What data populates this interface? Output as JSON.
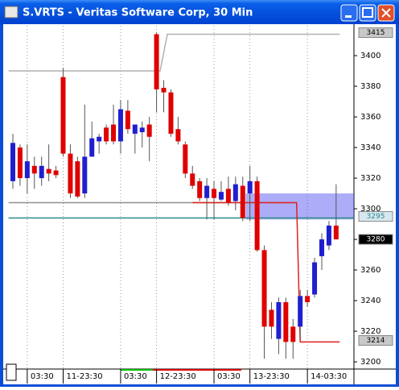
{
  "window": {
    "title": "S.VRTS - Veritas Software Corp, 30 Min"
  },
  "chart_data": {
    "type": "candlestick",
    "categories": [
      null,
      null,
      "03:30",
      null,
      null,
      null,
      null,
      "11-23:30",
      null,
      null,
      null,
      null,
      null,
      null,
      null,
      "03:30",
      null,
      null,
      null,
      null,
      "12-23:30",
      null,
      null,
      null,
      null,
      null,
      null,
      null,
      "03:30",
      null,
      null,
      null,
      null,
      "13-23:30",
      null,
      null,
      null,
      null,
      null,
      null,
      null,
      "14-03:30",
      null,
      null,
      null,
      null
    ],
    "open": [
      3318,
      3340,
      3320,
      3328,
      3320,
      3326,
      3325,
      3386,
      3336,
      3331,
      3310,
      3334,
      3344,
      3353,
      3355,
      3344,
      3364,
      3349,
      3350,
      3355,
      3414,
      3379,
      3376,
      3352,
      3342,
      3323,
      3318,
      3307,
      3313,
      3306,
      3313,
      3305,
      3315,
      3310,
      3318,
      3273,
      3234,
      3215,
      3239,
      3223,
      3223,
      3243,
      3244,
      3269,
      3276,
      3289
    ],
    "high": [
      3349,
      3342,
      3342,
      3334,
      3334,
      3342,
      3328,
      3392,
      3342,
      3334,
      3368,
      3357,
      3349,
      3355,
      3368,
      3371,
      3371,
      3355,
      3357,
      3360,
      3415,
      3384,
      3378,
      3360,
      3344,
      3328,
      3320,
      3320,
      3318,
      3318,
      3321,
      3321,
      3321,
      3328,
      3321,
      3276,
      3239,
      3242,
      3242,
      3228,
      3247,
      3247,
      3268,
      3284,
      3292,
      3316
    ],
    "low": [
      3313,
      3315,
      3310,
      3313,
      3315,
      3318,
      3320,
      3334,
      3307,
      3307,
      3307,
      3334,
      3336,
      3342,
      3342,
      3336,
      3349,
      3336,
      3340,
      3331,
      3363,
      3363,
      3347,
      3342,
      3320,
      3313,
      3305,
      3293,
      3293,
      3305,
      3302,
      3299,
      3292,
      3292,
      3272,
      3202,
      3215,
      3205,
      3202,
      3202,
      3215,
      3236,
      3242,
      3260,
      3273,
      3280
    ],
    "close": [
      3343,
      3320,
      3331,
      3323,
      3328,
      3323,
      3322,
      3336,
      3310,
      3308,
      3334,
      3346,
      3347,
      3344,
      3344,
      3365,
      3352,
      3355,
      3353,
      3347,
      3378,
      3376,
      3349,
      3344,
      3323,
      3315,
      3307,
      3315,
      3307,
      3311,
      3304,
      3316,
      3294,
      3318,
      3273,
      3223,
      3223,
      3239,
      3213,
      3213,
      3243,
      3239,
      3265,
      3280,
      3289,
      3280
    ],
    "up_color": "#1f1fd0",
    "down_color": "#e00000",
    "ylim": [
      3195.3,
      3419.5
    ],
    "yticks": [
      3200,
      3220,
      3240,
      3260,
      3280,
      3300,
      3320,
      3340,
      3360,
      3380,
      3400
    ],
    "grid": "x",
    "lines": [
      {
        "color": "#b0b0b0",
        "x": [
          -0.6,
          20.5,
          21.5,
          45.5
        ],
        "y": [
          3390,
          3390,
          3414,
          3414
        ]
      },
      {
        "color": "#909090",
        "x": [
          -0.6,
          39.5
        ],
        "y": [
          3304,
          3304
        ]
      },
      {
        "color": "#2a8a8a",
        "x": [
          -0.6,
          47.6
        ],
        "y": [
          3294,
          3294
        ]
      },
      {
        "color": "#e02020",
        "x": [
          25,
          39.5,
          40,
          45.5
        ],
        "y": [
          3304,
          3304,
          3213,
          3213
        ]
      }
    ],
    "band": {
      "color": "rgba(70,70,240,0.45)",
      "x": [
        32.4,
        47.6
      ],
      "y": [
        3293,
        3310
      ]
    },
    "markers": [
      {
        "value": 3415,
        "bg": "#c8c8c8",
        "fg": "#000000"
      },
      {
        "value": 3295,
        "bg": "#d8e8f0",
        "fg": "#2a8a8a"
      },
      {
        "value": 3280,
        "bg": "#000000",
        "fg": "#ffffff"
      },
      {
        "value": 3214,
        "bg": "#c8c8c8",
        "fg": "#000000"
      }
    ]
  }
}
